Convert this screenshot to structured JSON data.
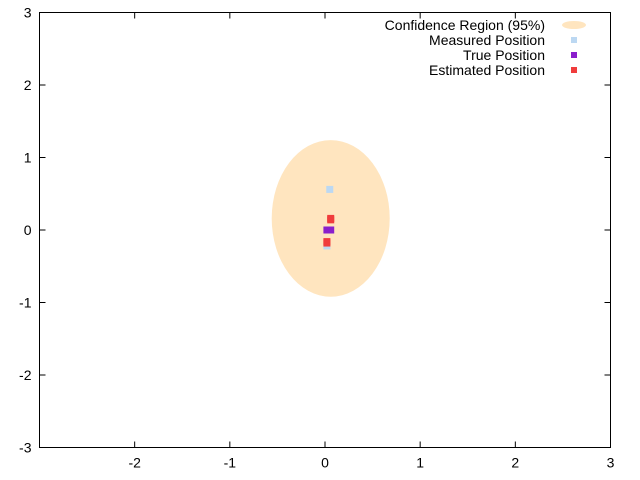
{
  "chart_data": {
    "type": "scatter",
    "title": "",
    "xlabel": "",
    "ylabel": "",
    "xlim": [
      -3,
      3
    ],
    "ylim": [
      -3,
      3
    ],
    "xticks": [
      "-2",
      "-1",
      "0",
      "1",
      "2",
      "3"
    ],
    "xtick_values": [
      -2,
      -1,
      0,
      1,
      2,
      3
    ],
    "yticks": [
      "3",
      "2",
      "1",
      "0",
      "-1",
      "-2",
      "-3"
    ],
    "ytick_values": [
      3,
      2,
      1,
      0,
      -1,
      -2,
      -3
    ],
    "grid": false,
    "legend_position": "top-right",
    "confidence_region": {
      "name": "Confidence Region (95%)",
      "color": "#ffe5bf",
      "center": [
        0.06,
        0.16
      ],
      "radius_x": 0.62,
      "radius_y": 1.08
    },
    "series": [
      {
        "name": "Measured Position",
        "color": "#bcd8f2",
        "marker": "square",
        "points": [
          [
            0.05,
            0.56
          ],
          [
            0.02,
            -0.22
          ]
        ]
      },
      {
        "name": "True Position",
        "color": "#8a1fcc",
        "marker": "square",
        "points": [
          [
            0.02,
            0.0
          ],
          [
            0.04,
            0.0
          ],
          [
            0.06,
            0.0
          ]
        ]
      },
      {
        "name": "Estimated Position",
        "color": "#f03c3c",
        "marker": "square",
        "points": [
          [
            0.06,
            0.16
          ],
          [
            0.06,
            0.14
          ],
          [
            0.02,
            -0.16
          ],
          [
            0.02,
            -0.18
          ]
        ]
      }
    ]
  }
}
